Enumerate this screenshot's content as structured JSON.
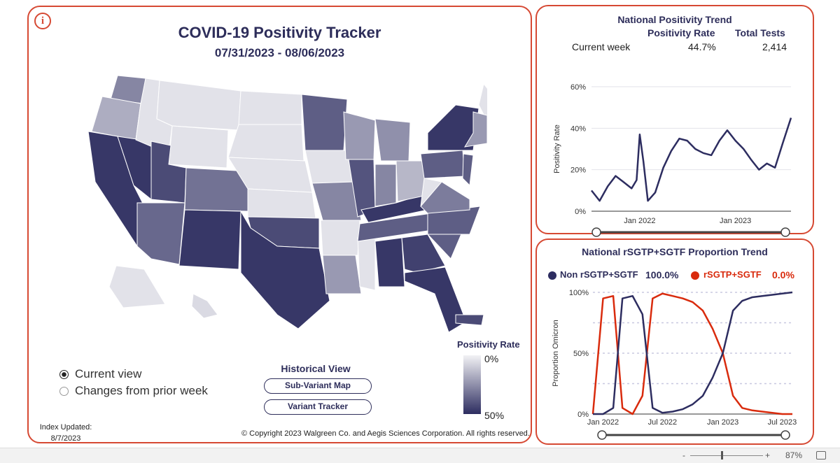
{
  "main": {
    "info_icon": "info-icon",
    "title": "COVID-19 Positivity Tracker",
    "dates": "07/31/2023 - 08/06/2023",
    "view_options": [
      {
        "label": "Current view",
        "selected": true
      },
      {
        "label": "Changes from prior week",
        "selected": false
      }
    ],
    "historical_title": "Historical View",
    "buttons": {
      "subvariant": "Sub-Variant Map",
      "variant": "Variant Tracker"
    },
    "legend": {
      "title": "Positivity Rate",
      "min": "0%",
      "max": "50%",
      "color_low": "#f2f2f5",
      "color_high": "#2d2d60"
    },
    "index_updated_label": "Index Updated:",
    "index_updated_date": "8/7/2023",
    "copyright": "© Copyright 2023 Walgreen Co. and Aegis Sciences Corporation. All rights reserved."
  },
  "positivity": {
    "title": "National Positivity Trend",
    "col_rate": "Positivity Rate",
    "col_tests": "Total Tests",
    "row_label": "Current week",
    "rate": "44.7%",
    "tests": "2,414",
    "chart_data": {
      "type": "line",
      "ylabel": "Positivity Rate",
      "yticks": [
        "0%",
        "20%",
        "40%",
        "60%"
      ],
      "xticks": [
        "Jan 2022",
        "Jan 2023"
      ],
      "ylim": [
        0,
        60
      ],
      "series": [
        {
          "color": "#2d2d60",
          "x": [
            "2021-07",
            "2021-08",
            "2021-09",
            "2021-10",
            "2021-11",
            "2021-12",
            "2021-12-20",
            "2022-01",
            "2022-01-15",
            "2022-02",
            "2022-03",
            "2022-04",
            "2022-05",
            "2022-06",
            "2022-07",
            "2022-08",
            "2022-09",
            "2022-10",
            "2022-11",
            "2022-12",
            "2023-01",
            "2023-02",
            "2023-03",
            "2023-04",
            "2023-05",
            "2023-06",
            "2023-07",
            "2023-08"
          ],
          "values": [
            10,
            5,
            12,
            17,
            14,
            11,
            15,
            37,
            24,
            5,
            9,
            21,
            29,
            35,
            34,
            30,
            28,
            27,
            34,
            39,
            34,
            30,
            25,
            20,
            23,
            21,
            33,
            45
          ]
        }
      ]
    }
  },
  "proportion": {
    "title": "National rSGTP+SGTF Proportion Trend",
    "legend": [
      {
        "label": "Non rSGTP+SGTF",
        "value": "100.0%",
        "color": "#2d2d60"
      },
      {
        "label": "rSGTP+SGTF",
        "value": "0.0%",
        "color": "#d92b0d"
      }
    ],
    "chart_data": {
      "type": "line",
      "ylabel": "Proportion Omicron",
      "yticks": [
        "0%",
        "50%",
        "100%"
      ],
      "xticks": [
        "Jan 2022",
        "Jul 2022",
        "Jan 2023",
        "Jul 2023"
      ],
      "ylim": [
        0,
        100
      ],
      "series": [
        {
          "name": "rSGTP+SGTF",
          "color": "#d92b0d",
          "x": [
            "2021-12",
            "2022-01",
            "2022-02",
            "2022-03",
            "2022-04",
            "2022-05",
            "2022-06",
            "2022-07",
            "2022-08",
            "2022-09",
            "2022-10",
            "2022-11",
            "2022-12",
            "2023-01",
            "2023-02",
            "2023-03",
            "2023-04",
            "2023-05",
            "2023-06",
            "2023-07",
            "2023-08"
          ],
          "values": [
            0,
            95,
            97,
            5,
            0,
            15,
            95,
            99,
            97,
            95,
            92,
            85,
            70,
            50,
            15,
            5,
            3,
            2,
            1,
            0,
            0
          ]
        },
        {
          "name": "Non rSGTP+SGTF",
          "color": "#2d2d60",
          "x": [
            "2021-12",
            "2022-01",
            "2022-02",
            "2022-03",
            "2022-04",
            "2022-05",
            "2022-06",
            "2022-07",
            "2022-08",
            "2022-09",
            "2022-10",
            "2022-11",
            "2022-12",
            "2023-01",
            "2023-02",
            "2023-03",
            "2023-04",
            "2023-05",
            "2023-06",
            "2023-07",
            "2023-08"
          ],
          "values": [
            0,
            0,
            5,
            95,
            97,
            82,
            5,
            1,
            2,
            4,
            8,
            15,
            30,
            50,
            85,
            93,
            96,
            97,
            98,
            99,
            100
          ]
        }
      ]
    }
  },
  "statusbar": {
    "minus": "-",
    "plus": "+",
    "zoom": "87%"
  },
  "map_states": [
    {
      "name": "WA",
      "level": 0.55
    },
    {
      "name": "OR",
      "level": 0.35
    },
    {
      "name": "CA",
      "level": 0.95
    },
    {
      "name": "NV",
      "level": 0.95
    },
    {
      "name": "ID",
      "level": 0.08
    },
    {
      "name": "MT",
      "level": 0.08
    },
    {
      "name": "WY",
      "level": 0.08
    },
    {
      "name": "UT",
      "level": 0.85
    },
    {
      "name": "AZ",
      "level": 0.7
    },
    {
      "name": "CO",
      "level": 0.65
    },
    {
      "name": "NM",
      "level": 0.95
    },
    {
      "name": "ND",
      "level": 0.08
    },
    {
      "name": "SD",
      "level": 0.08
    },
    {
      "name": "NE",
      "level": 0.08
    },
    {
      "name": "KS",
      "level": 0.08
    },
    {
      "name": "OK",
      "level": 0.85
    },
    {
      "name": "TX",
      "level": 0.95
    },
    {
      "name": "MN",
      "level": 0.75
    },
    {
      "name": "IA",
      "level": 0.08
    },
    {
      "name": "MO",
      "level": 0.55
    },
    {
      "name": "AR",
      "level": 0.08
    },
    {
      "name": "LA",
      "level": 0.45
    },
    {
      "name": "WI",
      "level": 0.45
    },
    {
      "name": "IL",
      "level": 0.8
    },
    {
      "name": "MS",
      "level": 0.08
    },
    {
      "name": "MI",
      "level": 0.5
    },
    {
      "name": "IN",
      "level": 0.55
    },
    {
      "name": "KY",
      "level": 0.95
    },
    {
      "name": "TN",
      "level": 0.75
    },
    {
      "name": "AL",
      "level": 0.95
    },
    {
      "name": "OH",
      "level": 0.3
    },
    {
      "name": "WV",
      "level": 0.08
    },
    {
      "name": "GA",
      "level": 0.9
    },
    {
      "name": "FL",
      "level": 0.95
    },
    {
      "name": "SC",
      "level": 0.75
    },
    {
      "name": "NC",
      "level": 0.75
    },
    {
      "name": "VA",
      "level": 0.6
    },
    {
      "name": "PA",
      "level": 0.75
    },
    {
      "name": "NY",
      "level": 0.95
    },
    {
      "name": "ME",
      "level": 0.08
    },
    {
      "name": "NE-states",
      "level": 0.45
    },
    {
      "name": "NJ",
      "level": 0.75
    },
    {
      "name": "AK",
      "level": 0.08
    },
    {
      "name": "HI",
      "level": 0.12
    },
    {
      "name": "PR",
      "level": 0.85
    }
  ]
}
